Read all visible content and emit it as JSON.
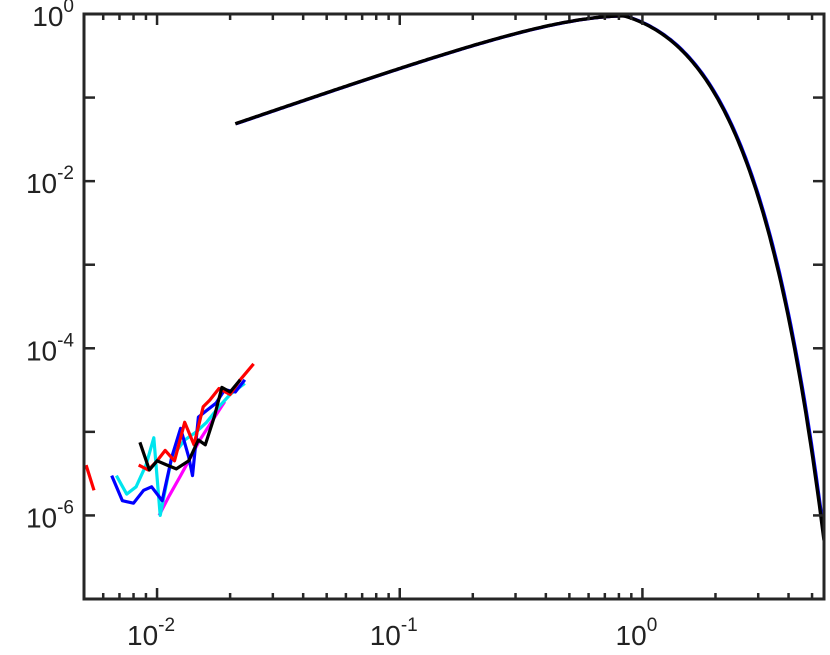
{
  "chart_data": {
    "type": "line",
    "title": "",
    "xlabel": "",
    "ylabel": "",
    "xscale": "log",
    "yscale": "log",
    "xlim": [
      0.005,
      5.6
    ],
    "ylim": [
      1e-07,
      1
    ],
    "grid": false,
    "x_ticks": [
      {
        "value": 0.01,
        "base": "10",
        "exp": "-2"
      },
      {
        "value": 0.1,
        "base": "10",
        "exp": "-1"
      },
      {
        "value": 1,
        "base": "10",
        "exp": "0"
      }
    ],
    "y_ticks": [
      {
        "value": 1e-06,
        "base": "10",
        "exp": "-6"
      },
      {
        "value": 0.0001,
        "base": "10",
        "exp": "-4"
      },
      {
        "value": 0.01,
        "base": "10",
        "exp": "-2"
      },
      {
        "value": 1,
        "base": "10",
        "exp": "0"
      }
    ],
    "series": [
      {
        "color": "#ff00ff",
        "noisy": [
          [
            0.0102,
            1e-06
          ],
          [
            0.0112,
            1.7e-06
          ],
          [
            0.0125,
            3e-06
          ],
          [
            0.0135,
            4.5e-06
          ],
          [
            0.015,
            8e-06
          ],
          [
            0.017,
            1.4e-05
          ],
          [
            0.019,
            2.3e-05
          ]
        ]
      },
      {
        "color": "#00e5ee",
        "noisy": [
          [
            0.0068,
            3e-06
          ],
          [
            0.0075,
            1.8e-06
          ],
          [
            0.0082,
            2.2e-06
          ],
          [
            0.009,
            4e-06
          ],
          [
            0.0097,
            8.5e-06
          ],
          [
            0.0103,
            1e-06
          ],
          [
            0.0115,
            5e-06
          ],
          [
            0.013,
            8e-06
          ],
          [
            0.0145,
            1e-05
          ],
          [
            0.016,
            1.3e-05
          ],
          [
            0.018,
            2e-05
          ],
          [
            0.02,
            2.8e-05
          ],
          [
            0.023,
            3.8e-05
          ]
        ]
      },
      {
        "color": "#0000ff",
        "noisy": [
          [
            0.0065,
            3e-06
          ],
          [
            0.0072,
            1.5e-06
          ],
          [
            0.008,
            1.4e-06
          ],
          [
            0.0088,
            2e-06
          ],
          [
            0.0095,
            2.2e-06
          ],
          [
            0.0105,
            1.5e-06
          ],
          [
            0.0115,
            5e-06
          ],
          [
            0.0125,
            1.1e-05
          ],
          [
            0.0135,
            5e-06
          ],
          [
            0.014,
            3e-06
          ],
          [
            0.0148,
            1.5e-05
          ],
          [
            0.016,
            1.8e-05
          ],
          [
            0.0175,
            2.2e-05
          ],
          [
            0.019,
            3.2e-05
          ],
          [
            0.021,
            3e-05
          ],
          [
            0.023,
            4.2e-05
          ]
        ]
      },
      {
        "color": "#ff0000",
        "noisy": [
          [
            0.0051,
            4e-06
          ],
          [
            0.0055,
            2e-06
          ]
        ],
        "noisy2": [
          [
            0.0084,
            4e-06
          ],
          [
            0.0092,
            3.5e-06
          ],
          [
            0.01,
            4.5e-06
          ],
          [
            0.0108,
            6e-06
          ],
          [
            0.0118,
            4.5e-06
          ],
          [
            0.013,
            1.3e-05
          ],
          [
            0.0142,
            7e-06
          ],
          [
            0.0155,
            2e-05
          ],
          [
            0.0165,
            2.4e-05
          ],
          [
            0.018,
            3.3e-05
          ],
          [
            0.02,
            2.8e-05
          ],
          [
            0.022,
            4.2e-05
          ],
          [
            0.025,
            6.5e-05
          ]
        ]
      },
      {
        "color": "#000000",
        "noisy": [
          [
            0.0085,
            7.5e-06
          ],
          [
            0.0093,
            3.5e-06
          ],
          [
            0.01,
            4.5e-06
          ],
          [
            0.011,
            4e-06
          ],
          [
            0.012,
            3.6e-06
          ],
          [
            0.0135,
            4.5e-06
          ],
          [
            0.0148,
            8e-06
          ],
          [
            0.0158,
            7e-06
          ],
          [
            0.0172,
            1.5e-05
          ],
          [
            0.0185,
            3.4e-05
          ],
          [
            0.02,
            3e-05
          ],
          [
            0.022,
            4.2e-05
          ]
        ]
      }
    ],
    "main_curve": {
      "color": "#000000",
      "peak_x": 0.84,
      "peak_y": 0.95,
      "x_start": 0.021,
      "x_end": 5.6
    }
  }
}
